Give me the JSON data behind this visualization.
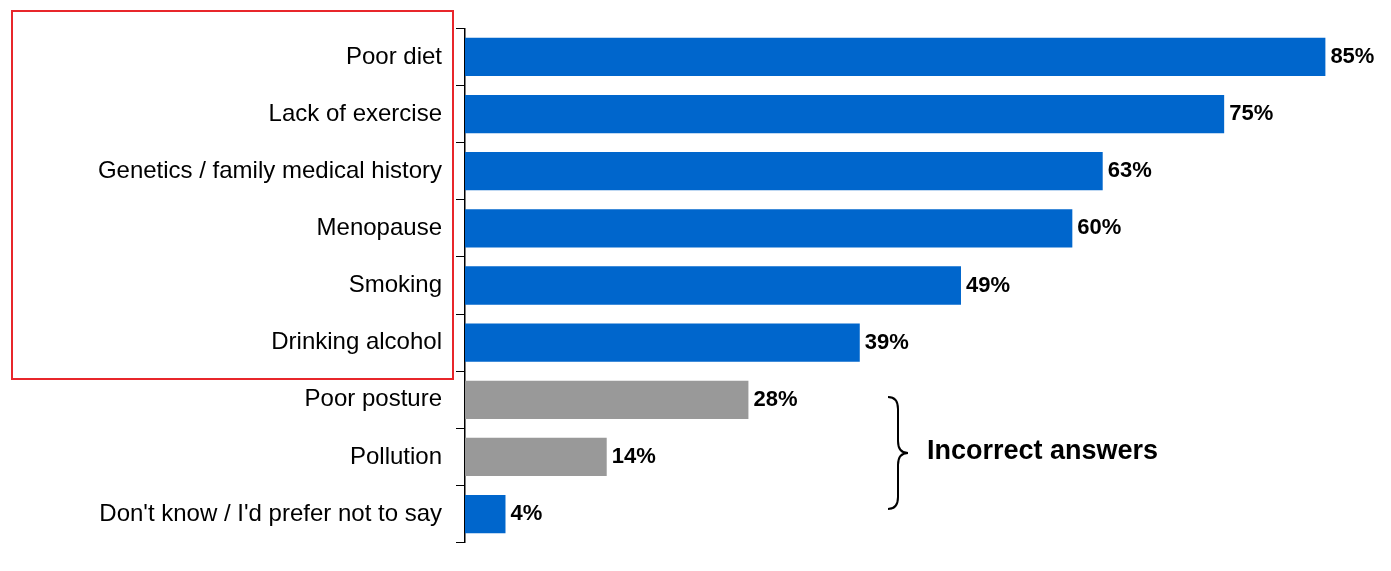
{
  "chart_data": {
    "type": "bar",
    "orientation": "horizontal",
    "categories": [
      "Poor diet",
      "Lack of exercise",
      "Genetics / family medical history",
      "Menopause",
      "Smoking",
      "Drinking alcohol",
      "Poor posture",
      "Pollution",
      "Don't know / I'd prefer not to say"
    ],
    "values": [
      85,
      75,
      63,
      60,
      49,
      39,
      28,
      14,
      4
    ],
    "value_labels": [
      "85%",
      "75%",
      "63%",
      "60%",
      "49%",
      "39%",
      "28%",
      "14%",
      "4%"
    ],
    "colors": [
      "#0066cc",
      "#0066cc",
      "#0066cc",
      "#0066cc",
      "#0066cc",
      "#0066cc",
      "#999999",
      "#999999",
      "#0066cc"
    ],
    "tick_labels": "y",
    "legend": false,
    "annotations": [
      "Incorrect answers"
    ]
  }
}
